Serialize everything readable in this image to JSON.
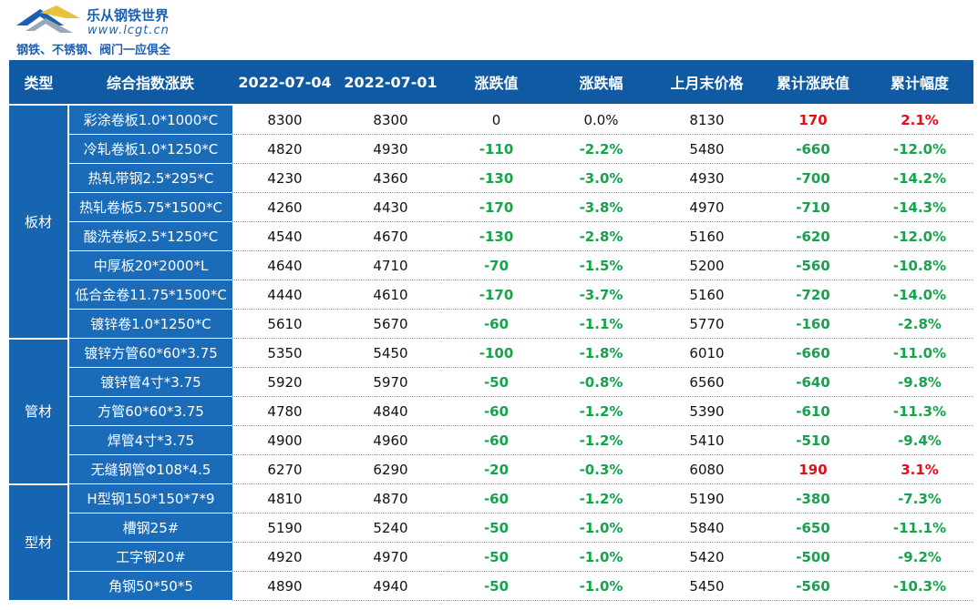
{
  "header": {
    "brand": "乐从钢铁世界",
    "url": "www.lcgt.cn",
    "slogan": "钢铁、不锈钢、阀门一应俱全"
  },
  "table": {
    "columns": [
      "类型",
      "综合指数涨跌",
      "2022-07-04",
      "2022-07-01",
      "涨跌值",
      "涨跌幅",
      "上月末价格",
      "累计涨跌值",
      "累计幅度"
    ],
    "groups": [
      {
        "label": "板材",
        "rows": [
          [
            "彩涂卷板1.0*1000*C",
            "8300",
            "8300",
            "0",
            "0.0%",
            "8130",
            "170",
            "2.1%"
          ],
          [
            "冷轧卷板1.0*1250*C",
            "4820",
            "4930",
            "-110",
            "-2.2%",
            "5480",
            "-660",
            "-12.0%"
          ],
          [
            "热轧带钢2.5*295*C",
            "4230",
            "4360",
            "-130",
            "-3.0%",
            "4930",
            "-700",
            "-14.2%"
          ],
          [
            "热轧卷板5.75*1500*C",
            "4260",
            "4430",
            "-170",
            "-3.8%",
            "4970",
            "-710",
            "-14.3%"
          ],
          [
            "酸洗卷板2.5*1250*C",
            "4540",
            "4670",
            "-130",
            "-2.8%",
            "5160",
            "-620",
            "-12.0%"
          ],
          [
            "中厚板20*2000*L",
            "4640",
            "4710",
            "-70",
            "-1.5%",
            "5200",
            "-560",
            "-10.8%"
          ],
          [
            "低合金卷11.75*1500*C",
            "4440",
            "4610",
            "-170",
            "-3.7%",
            "5160",
            "-720",
            "-14.0%"
          ],
          [
            "镀锌卷1.0*1250*C",
            "5610",
            "5670",
            "-60",
            "-1.1%",
            "5770",
            "-160",
            "-2.8%"
          ]
        ]
      },
      {
        "label": "管材",
        "rows": [
          [
            "镀锌方管60*60*3.75",
            "5350",
            "5450",
            "-100",
            "-1.8%",
            "6010",
            "-660",
            "-11.0%"
          ],
          [
            "镀锌管4寸*3.75",
            "5920",
            "5970",
            "-50",
            "-0.8%",
            "6560",
            "-640",
            "-9.8%"
          ],
          [
            "方管60*60*3.75",
            "4780",
            "4840",
            "-60",
            "-1.2%",
            "5390",
            "-610",
            "-11.3%"
          ],
          [
            "焊管4寸*3.75",
            "4900",
            "4960",
            "-60",
            "-1.2%",
            "5410",
            "-510",
            "-9.4%"
          ],
          [
            "无缝钢管Φ108*4.5",
            "6270",
            "6290",
            "-20",
            "-0.3%",
            "6080",
            "190",
            "3.1%"
          ]
        ]
      },
      {
        "label": "型材",
        "rows": [
          [
            "H型钢150*150*7*9",
            "4810",
            "4870",
            "-60",
            "-1.2%",
            "5190",
            "-380",
            "-7.3%"
          ],
          [
            "槽钢25#",
            "5190",
            "5240",
            "-50",
            "-1.0%",
            "5840",
            "-650",
            "-11.1%"
          ],
          [
            "工字钢20#",
            "4920",
            "4970",
            "-50",
            "-1.0%",
            "5420",
            "-500",
            "-9.2%"
          ],
          [
            "角钢50*50*5",
            "4890",
            "4940",
            "-50",
            "-1.0%",
            "5450",
            "-560",
            "-10.3%"
          ]
        ]
      }
    ]
  }
}
